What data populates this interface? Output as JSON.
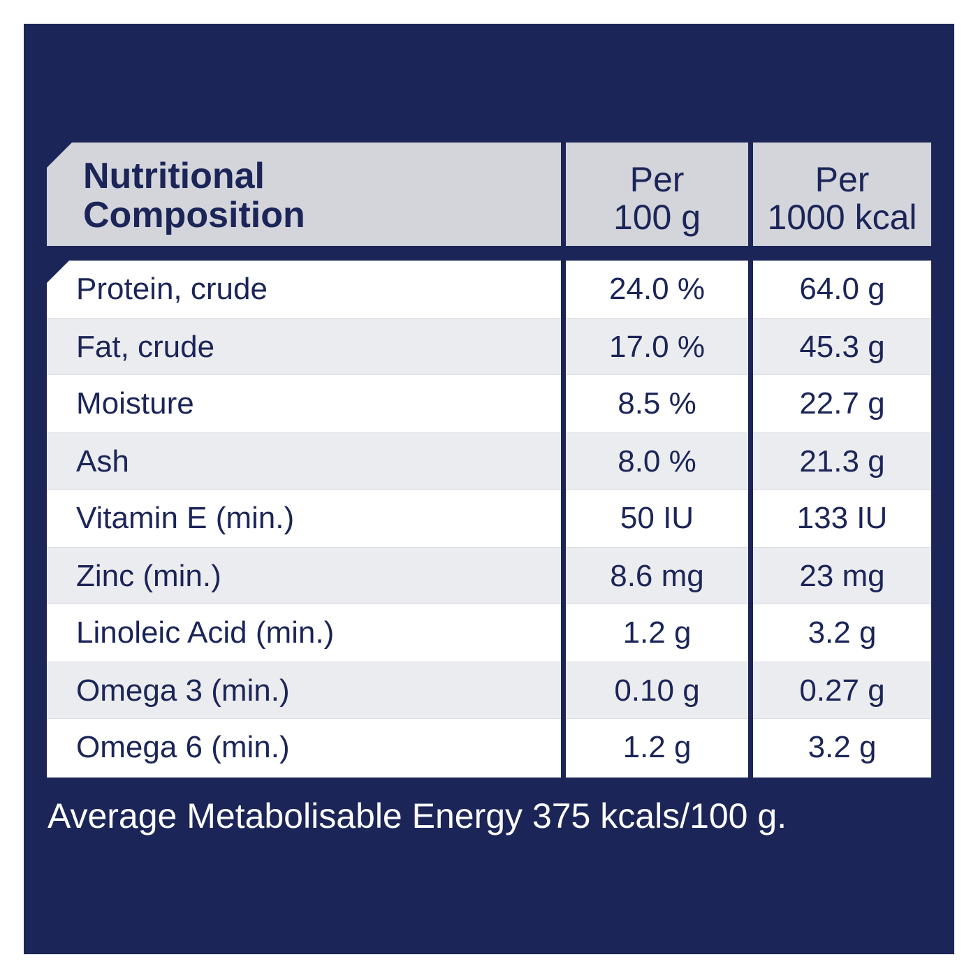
{
  "header": {
    "label_line1": "Nutritional",
    "label_line2": "Composition",
    "col1_line1": "Per",
    "col1_line2": "100 g",
    "col2_line1": "Per",
    "col2_line2": "1000 kcal"
  },
  "rows": [
    {
      "name": "Protein, crude",
      "per100g": "24.0 %",
      "per1000kcal": "64.0 g"
    },
    {
      "name": "Fat, crude",
      "per100g": "17.0 %",
      "per1000kcal": "45.3 g"
    },
    {
      "name": "Moisture",
      "per100g": "8.5 %",
      "per1000kcal": "22.7 g"
    },
    {
      "name": "Ash",
      "per100g": "8.0 %",
      "per1000kcal": "21.3 g"
    },
    {
      "name": "Vitamin E (min.)",
      "per100g": "50 IU",
      "per1000kcal": "133 IU"
    },
    {
      "name": "Zinc (min.)",
      "per100g": "8.6 mg",
      "per1000kcal": "23 mg"
    },
    {
      "name": "Linoleic Acid (min.)",
      "per100g": "1.2 g",
      "per1000kcal": "3.2 g"
    },
    {
      "name": "Omega 3 (min.)",
      "per100g": "0.10 g",
      "per1000kcal": "0.27 g"
    },
    {
      "name": "Omega 6 (min.)",
      "per100g": "1.2 g",
      "per1000kcal": "3.2 g"
    }
  ],
  "footer": "Average Metabolisable Energy 375 kcals/100 g.",
  "colors": {
    "background": "#1b2558",
    "header": "#d3d5db",
    "row_shade": "#ebecef",
    "text": "#1b2558"
  }
}
